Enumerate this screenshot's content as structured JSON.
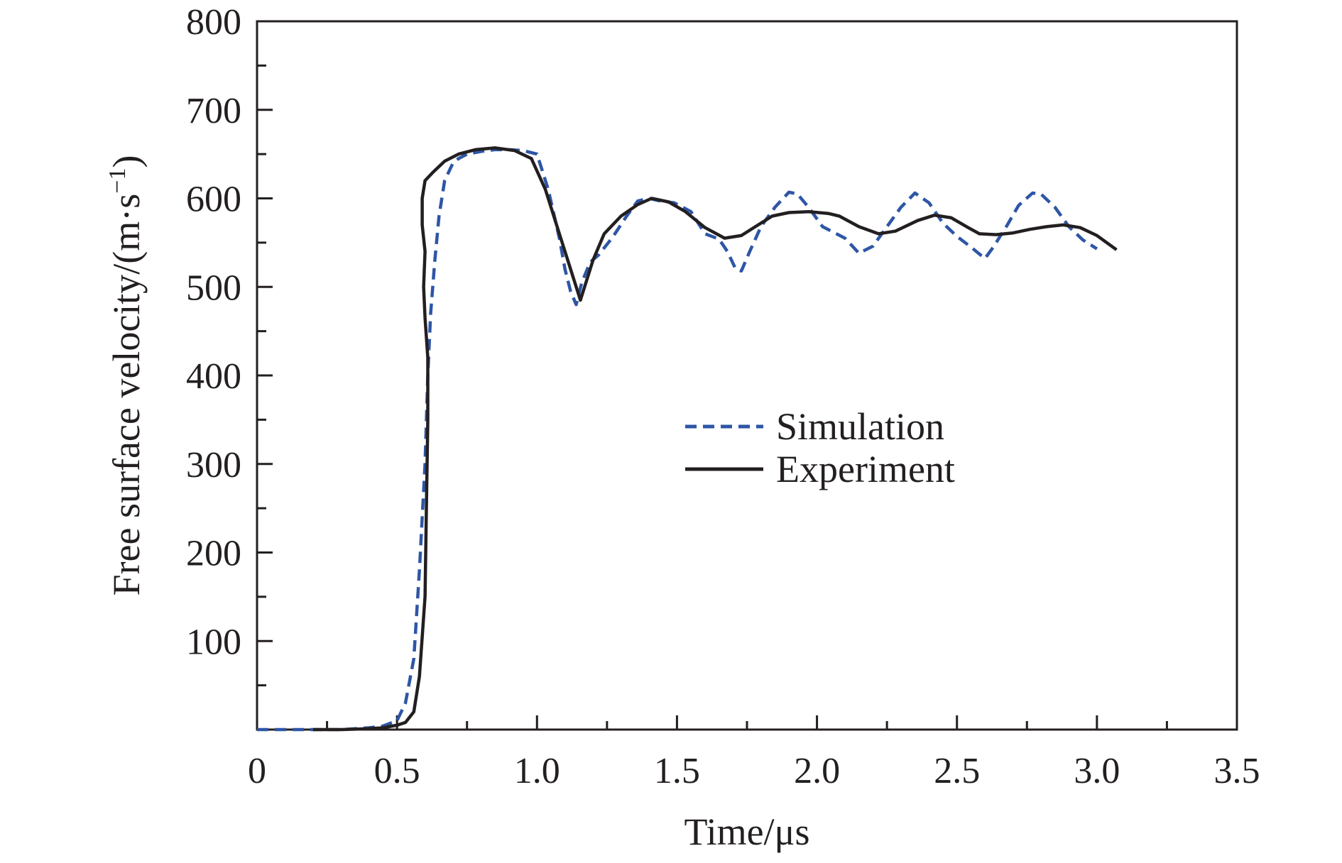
{
  "chart_data": {
    "type": "line",
    "xlabel": "Time/μs",
    "ylabel": "Free surface velocity/(m·s",
    "ylabel_exponent": "−1",
    "ylabel_close": ")",
    "xlim": [
      0,
      3.5
    ],
    "ylim": [
      0,
      800
    ],
    "x_major_ticks": [
      0,
      0.5,
      1.0,
      1.5,
      2.0,
      2.5,
      3.0,
      3.5
    ],
    "x_tick_labels": [
      "0",
      "0.5",
      "1.0",
      "1.5",
      "2.0",
      "2.5",
      "3.0",
      "3.5"
    ],
    "x_minor_step": 0.25,
    "y_major_ticks": [
      100,
      200,
      300,
      400,
      500,
      600,
      700,
      800
    ],
    "y_tick_labels": [
      "100",
      "200",
      "300",
      "400",
      "500",
      "600",
      "700",
      "800"
    ],
    "y_minor_step": 50,
    "grid": false,
    "legend_position": "center-right",
    "series": [
      {
        "name": "Simulation",
        "color": "#2e56a6",
        "style": "dashed",
        "x": [
          0.0,
          0.1,
          0.2,
          0.3,
          0.4,
          0.45,
          0.5,
          0.53,
          0.56,
          0.58,
          0.6,
          0.61,
          0.62,
          0.635,
          0.65,
          0.67,
          0.7,
          0.72,
          0.75,
          0.8,
          0.85,
          0.9,
          0.95,
          1.0,
          1.04,
          1.08,
          1.1,
          1.12,
          1.14,
          1.16,
          1.19,
          1.22,
          1.27,
          1.32,
          1.36,
          1.4,
          1.44,
          1.49,
          1.55,
          1.6,
          1.65,
          1.68,
          1.71,
          1.73,
          1.76,
          1.8,
          1.85,
          1.9,
          1.93,
          1.97,
          2.02,
          2.1,
          2.15,
          2.2,
          2.25,
          2.3,
          2.35,
          2.4,
          2.45,
          2.5,
          2.55,
          2.6,
          2.63,
          2.68,
          2.72,
          2.77,
          2.8,
          2.85,
          2.9,
          2.95,
          3.0
        ],
        "y": [
          0,
          0,
          0,
          0,
          2,
          4,
          10,
          30,
          80,
          180,
          300,
          400,
          470,
          530,
          580,
          620,
          640,
          645,
          650,
          653,
          655,
          655,
          654,
          650,
          610,
          555,
          520,
          495,
          480,
          505,
          528,
          536,
          556,
          580,
          597,
          600,
          597,
          595,
          585,
          560,
          554,
          540,
          520,
          518,
          540,
          568,
          590,
          607,
          605,
          590,
          568,
          555,
          538,
          546,
          568,
          590,
          606,
          595,
          572,
          557,
          545,
          532,
          545,
          570,
          592,
          606,
          605,
          590,
          568,
          553,
          543
        ]
      },
      {
        "name": "Experiment",
        "color": "#231f20",
        "style": "solid",
        "x": [
          0.2,
          0.3,
          0.4,
          0.45,
          0.5,
          0.53,
          0.56,
          0.58,
          0.6,
          0.605,
          0.61,
          0.61,
          0.6,
          0.595,
          0.6,
          0.59,
          0.59,
          0.6,
          0.63,
          0.67,
          0.72,
          0.78,
          0.85,
          0.92,
          0.98,
          1.03,
          1.08,
          1.12,
          1.155,
          1.2,
          1.24,
          1.3,
          1.36,
          1.41,
          1.47,
          1.53,
          1.6,
          1.67,
          1.73,
          1.78,
          1.84,
          1.9,
          1.97,
          2.04,
          2.08,
          2.15,
          2.22,
          2.28,
          2.36,
          2.42,
          2.48,
          2.54,
          2.58,
          2.64,
          2.7,
          2.76,
          2.82,
          2.88,
          2.94,
          3.0,
          3.07
        ],
        "y": [
          0,
          0,
          1,
          2,
          5,
          8,
          20,
          60,
          150,
          250,
          350,
          420,
          465,
          500,
          540,
          570,
          600,
          620,
          630,
          642,
          650,
          655,
          657,
          654,
          645,
          610,
          560,
          520,
          485,
          530,
          560,
          580,
          593,
          600,
          596,
          585,
          567,
          555,
          558,
          568,
          580,
          584,
          585,
          583,
          580,
          568,
          560,
          563,
          575,
          581,
          578,
          567,
          560,
          559,
          561,
          565,
          568,
          570,
          567,
          558,
          542
        ]
      }
    ]
  }
}
